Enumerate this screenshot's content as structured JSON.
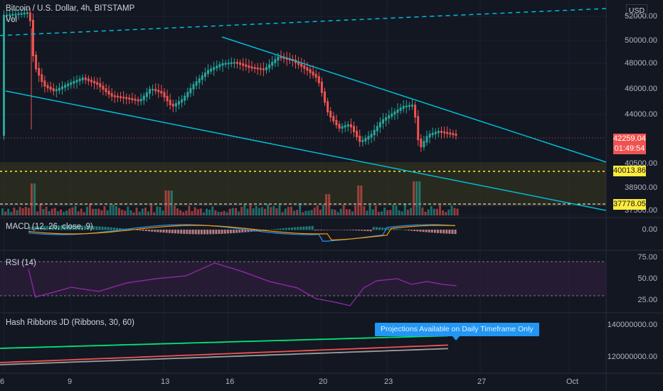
{
  "header": {
    "title": "Bitcoin / U.S. Dollar, 4h, BITSTAMP",
    "volume_label": "Vol"
  },
  "currency_button": "USD",
  "price_axis": {
    "labels": [
      "52000.00",
      "50000.00",
      "48000.00",
      "46000.00",
      "44000.00",
      "40500.00",
      "38900.00",
      "37500.00"
    ],
    "current_price": "42259.04",
    "countdown": "01:49:54",
    "alert_upper": "40013.86",
    "alert_lower": "37778.05"
  },
  "panes": {
    "macd": {
      "title": "MACD (12, 26, close, 9)",
      "axis": [
        "0.00"
      ]
    },
    "rsi": {
      "title": "RSI (14)",
      "axis": [
        "75.00",
        "50.00",
        "25.00"
      ]
    },
    "hash": {
      "title": "Hash Ribbons JD (Ribbons, 30, 60)",
      "axis": [
        "140000000.00",
        "120000000.00"
      ]
    }
  },
  "tooltip": "Projections Available on Daily Timeframe Only",
  "time_axis": [
    "6",
    "9",
    "13",
    "16",
    "20",
    "23",
    "27",
    "Oct"
  ],
  "colors": {
    "background": "#131722",
    "bull": "#26a69a",
    "bear": "#ef5350",
    "trendline": "#00bcd4",
    "macd_line": "#2196f3",
    "signal_line": "#ff9800",
    "rsi_line": "#9c27b0",
    "ribbon_green": "#00e676",
    "ribbon_red": "#ef5350",
    "ribbon_gray": "#9e9e9e",
    "alert_yellow": "#ffeb3b"
  }
}
